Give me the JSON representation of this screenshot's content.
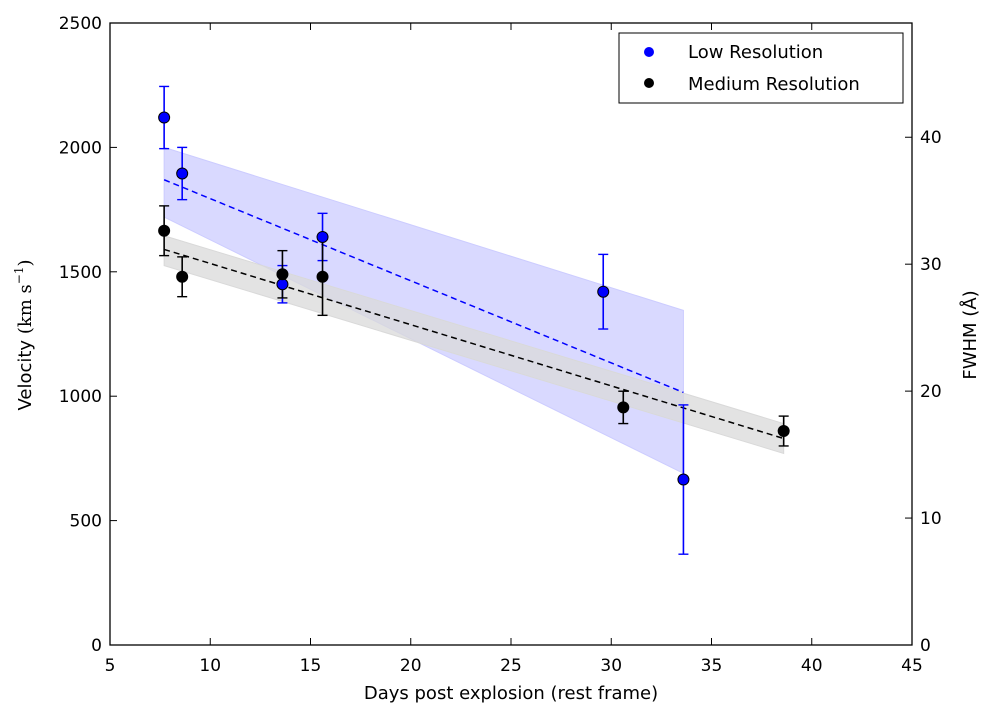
{
  "chart_data": {
    "type": "scatter",
    "title": "",
    "xlabel": "Days post explosion (rest frame)",
    "ylabel_text": "Velocity",
    "ylabel_units": "(km s",
    "ylabel_exp": "−1",
    "ylabel_close": ")",
    "y2label": "FWHM (Å)",
    "xlim": [
      5,
      45
    ],
    "ylim": [
      0,
      2500
    ],
    "y2lim": [
      0,
      49
    ],
    "xticks": [
      5,
      10,
      15,
      20,
      25,
      30,
      35,
      40,
      45
    ],
    "yticks": [
      0,
      500,
      1000,
      1500,
      2000,
      2500
    ],
    "y2ticks": [
      0,
      10,
      20,
      30,
      40
    ],
    "grid": false,
    "legend_position": "top-right",
    "series": [
      {
        "name": "Low Resolution",
        "color": "#0000ff",
        "band_color": "#ccccff",
        "points": [
          {
            "x": 7.7,
            "y": 2120,
            "err": 125
          },
          {
            "x": 8.6,
            "y": 1895,
            "err": 105
          },
          {
            "x": 13.6,
            "y": 1450,
            "err": 75
          },
          {
            "x": 15.6,
            "y": 1640,
            "err": 95
          },
          {
            "x": 29.6,
            "y": 1420,
            "err": 150
          },
          {
            "x": 33.6,
            "y": 665,
            "err": 300
          }
        ],
        "fit": {
          "x": [
            7.7,
            33.6
          ],
          "y": [
            1870,
            1015
          ]
        },
        "band": {
          "x": [
            7.7,
            33.6
          ],
          "upper": [
            2000,
            1345
          ],
          "lower": [
            1720,
            690
          ]
        }
      },
      {
        "name": "Medium Resolution",
        "color": "#000000",
        "band_color": "#d9d9d9",
        "points": [
          {
            "x": 7.7,
            "y": 1665,
            "err": 100
          },
          {
            "x": 8.6,
            "y": 1480,
            "err": 80
          },
          {
            "x": 13.6,
            "y": 1490,
            "err": 95
          },
          {
            "x": 15.6,
            "y": 1480,
            "err": 155
          },
          {
            "x": 30.6,
            "y": 955,
            "err": 65
          },
          {
            "x": 38.6,
            "y": 860,
            "err": 60
          }
        ],
        "fit": {
          "x": [
            7.7,
            38.6
          ],
          "y": [
            1590,
            830
          ]
        },
        "band": {
          "x": [
            7.7,
            38.6
          ],
          "upper": [
            1645,
            890
          ],
          "lower": [
            1525,
            770
          ]
        }
      }
    ]
  }
}
